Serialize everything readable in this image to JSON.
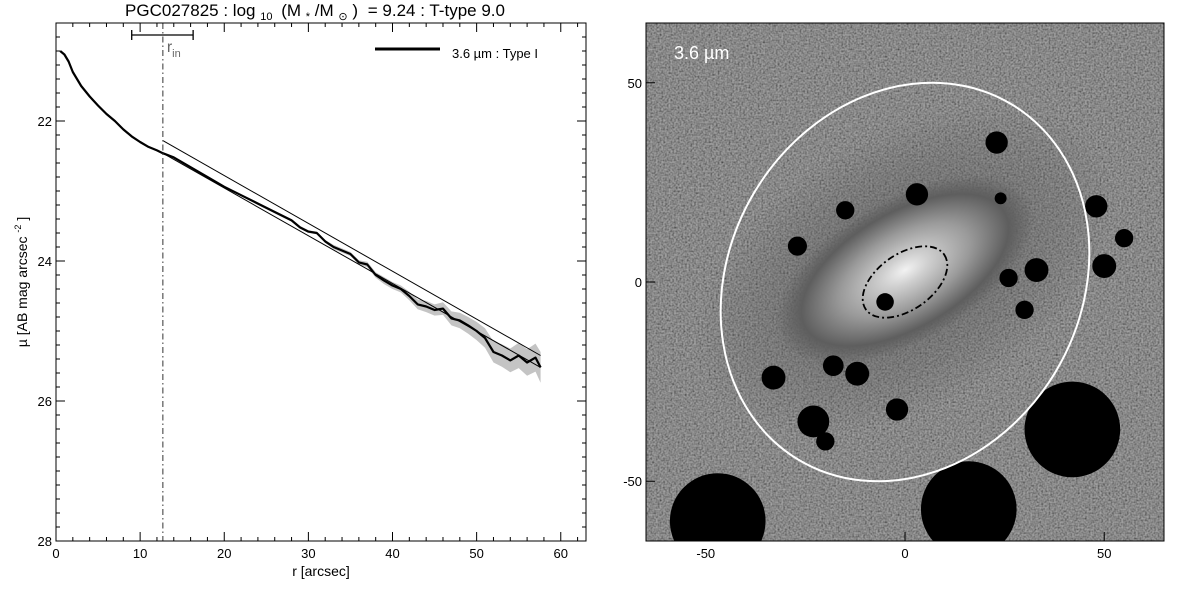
{
  "figure": {
    "title_parts": {
      "galaxy": "PGC027825",
      "log": "log",
      "log_sub": "10",
      "mass_open": "(M",
      "star_sub": "*",
      "mass_mid": "/M",
      "sun_sub": "⊙",
      "mass_close": ")",
      "value": "= 9.24 : T-type 9.0"
    }
  },
  "chart_data": [
    {
      "type": "line",
      "panel": "radial-surface-brightness-profile",
      "xlabel": "r [arcsec]",
      "ylabel_main": "µ [AB mag arcsec",
      "ylabel_sup": "-2",
      "ylabel_close": "]",
      "xlim": [
        0,
        63
      ],
      "ylim": [
        28,
        20.6
      ],
      "y_inverted": true,
      "xticks": [
        0,
        10,
        20,
        30,
        40,
        50,
        60
      ],
      "yticks": [
        22,
        24,
        26,
        28
      ],
      "legend": {
        "placement": "top-right",
        "label": "3.6 µm : Type I"
      },
      "annotation": {
        "label": "r",
        "label_sub": "in",
        "r_in": 12.7,
        "bar": [
          9.0,
          16.3
        ]
      },
      "series": [
        {
          "name": "3.6 µm : Type I",
          "color": "#000000",
          "x": [
            0.5,
            1,
            1.5,
            2,
            3,
            4,
            5,
            6,
            7,
            8,
            9,
            10,
            11,
            12,
            12.7,
            14,
            16,
            18,
            20,
            22,
            24,
            26,
            28,
            29,
            30,
            31,
            32,
            33,
            34,
            35,
            36,
            37,
            38,
            39,
            40,
            41,
            42,
            43,
            44,
            45,
            46,
            47,
            48,
            49,
            50,
            51,
            52,
            53,
            54,
            55,
            56,
            57,
            57.6
          ],
          "y": [
            21.0,
            21.05,
            21.15,
            21.3,
            21.5,
            21.65,
            21.78,
            21.9,
            22.0,
            22.12,
            22.22,
            22.3,
            22.37,
            22.42,
            22.46,
            22.52,
            22.66,
            22.8,
            22.94,
            23.06,
            23.18,
            23.3,
            23.42,
            23.52,
            23.58,
            23.6,
            23.72,
            23.8,
            23.85,
            23.9,
            24.02,
            24.05,
            24.2,
            24.28,
            24.35,
            24.4,
            24.5,
            24.62,
            24.65,
            24.7,
            24.68,
            24.82,
            24.85,
            24.92,
            25.0,
            25.1,
            25.3,
            25.35,
            25.42,
            25.35,
            25.45,
            25.38,
            25.52
          ],
          "err": [
            0.01,
            0.01,
            0.01,
            0.01,
            0.01,
            0.01,
            0.01,
            0.01,
            0.01,
            0.01,
            0.01,
            0.01,
            0.01,
            0.01,
            0.01,
            0.01,
            0.01,
            0.01,
            0.01,
            0.01,
            0.02,
            0.02,
            0.02,
            0.02,
            0.02,
            0.02,
            0.02,
            0.03,
            0.03,
            0.03,
            0.03,
            0.04,
            0.04,
            0.05,
            0.05,
            0.05,
            0.06,
            0.07,
            0.08,
            0.08,
            0.09,
            0.1,
            0.11,
            0.12,
            0.13,
            0.14,
            0.15,
            0.16,
            0.17,
            0.18,
            0.19,
            0.2,
            0.22
          ]
        }
      ],
      "fit_lines": [
        {
          "x": [
            12.7,
            57.6
          ],
          "y": [
            22.28,
            25.35
          ]
        },
        {
          "x": [
            12.7,
            57.6
          ],
          "y": [
            22.46,
            25.52
          ]
        }
      ]
    },
    {
      "type": "heatmap",
      "panel": "galaxy-image",
      "image_label": "3.6 µm",
      "xlim": [
        -65,
        65
      ],
      "ylim": [
        -65,
        65
      ],
      "xticks": [
        -50,
        0,
        50
      ],
      "yticks": [
        -50,
        0,
        50
      ],
      "galaxy": {
        "center": [
          0,
          3
        ],
        "major": 36,
        "minor": 18,
        "pa_deg": 30
      },
      "outer_ellipse": {
        "center": [
          0,
          0
        ],
        "a": 52,
        "b": 44,
        "pa_deg": 59
      },
      "inner_ellipse": {
        "center": [
          0,
          0
        ],
        "a": 12,
        "b": 7,
        "pa_deg": 35
      },
      "masks": [
        {
          "x": 23,
          "y": 35,
          "r": 2.8
        },
        {
          "x": 3,
          "y": 22,
          "r": 2.8
        },
        {
          "x": 24,
          "y": 21,
          "r": 1.5
        },
        {
          "x": -15,
          "y": 18,
          "r": 2.3
        },
        {
          "x": 48,
          "y": 19,
          "r": 2.8
        },
        {
          "x": -27,
          "y": 9,
          "r": 2.4
        },
        {
          "x": 55,
          "y": 11,
          "r": 2.3
        },
        {
          "x": 33,
          "y": 3,
          "r": 3.0
        },
        {
          "x": 50,
          "y": 4,
          "r": 3.0
        },
        {
          "x": 26,
          "y": 1,
          "r": 2.3
        },
        {
          "x": -5,
          "y": -5,
          "r": 2.2
        },
        {
          "x": 30,
          "y": -7,
          "r": 2.3
        },
        {
          "x": -18,
          "y": -21,
          "r": 2.6
        },
        {
          "x": -12,
          "y": -23,
          "r": 3.0
        },
        {
          "x": -33,
          "y": -24,
          "r": 3.0
        },
        {
          "x": -23,
          "y": -35,
          "r": 4.0
        },
        {
          "x": -2,
          "y": -32,
          "r": 2.8
        },
        {
          "x": -20,
          "y": -40,
          "r": 2.3
        },
        {
          "x": 42,
          "y": -37,
          "r": 12
        },
        {
          "x": 16,
          "y": -57,
          "r": 12
        },
        {
          "x": -47,
          "y": -60,
          "r": 12
        }
      ]
    }
  ]
}
